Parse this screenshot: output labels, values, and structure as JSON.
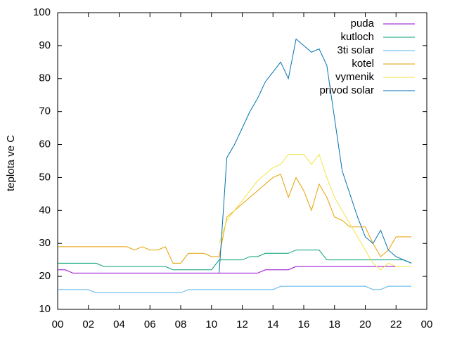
{
  "chart_data": {
    "type": "line",
    "ylabel": "teplota ve C",
    "x": [
      0,
      0.5,
      1,
      1.5,
      2,
      2.5,
      3,
      3.5,
      4,
      4.5,
      5,
      5.5,
      6,
      6.5,
      7,
      7.5,
      8,
      8.5,
      9,
      9.5,
      10,
      10.5,
      11,
      11.5,
      12,
      12.5,
      13,
      13.5,
      14,
      14.5,
      15,
      15.5,
      16,
      16.5,
      17,
      17.5,
      18,
      18.5,
      19,
      19.5,
      20,
      20.5,
      21,
      21.5,
      22,
      22.5,
      23
    ],
    "series": [
      {
        "name": "puda",
        "color": "#9400d3",
        "values": [
          22,
          22,
          21,
          21,
          21,
          21,
          21,
          21,
          21,
          21,
          21,
          21,
          21,
          21,
          21,
          21,
          21,
          21,
          21,
          21,
          21,
          21,
          21,
          21,
          21,
          21,
          21,
          22,
          22,
          22,
          22,
          23,
          23,
          23,
          23,
          23,
          23,
          23,
          23,
          23,
          23,
          23,
          23,
          23,
          23,
          23,
          23
        ]
      },
      {
        "name": "kutloch",
        "color": "#009e73",
        "values": [
          24,
          24,
          24,
          24,
          24,
          24,
          23,
          23,
          23,
          23,
          23,
          23,
          23,
          23,
          23,
          22,
          22,
          22,
          22,
          22,
          22,
          25,
          25,
          25,
          25,
          26,
          26,
          27,
          27,
          27,
          27,
          28,
          28,
          28,
          28,
          25,
          25,
          25,
          25,
          25,
          25,
          25,
          25,
          25,
          25,
          25,
          24
        ]
      },
      {
        "name": "3ti solar",
        "color": "#56b4e9",
        "values": [
          16,
          16,
          16,
          16,
          16,
          15,
          15,
          15,
          15,
          15,
          15,
          15,
          15,
          15,
          15,
          15,
          15,
          16,
          16,
          16,
          16,
          16,
          16,
          16,
          16,
          16,
          16,
          16,
          16,
          17,
          17,
          17,
          17,
          17,
          17,
          17,
          17,
          17,
          17,
          17,
          17,
          16,
          16,
          17,
          17,
          17,
          17
        ]
      },
      {
        "name": "kotel",
        "color": "#e69f00",
        "values": [
          29,
          29,
          29,
          29,
          29,
          29,
          29,
          29,
          29,
          29,
          28,
          29,
          28,
          28,
          29,
          24,
          24,
          27,
          27,
          27,
          26,
          26,
          38,
          40,
          42,
          44,
          46,
          48,
          50,
          51,
          44,
          50,
          46,
          40,
          48,
          44,
          38,
          37,
          35,
          35,
          35,
          30,
          26,
          28,
          32,
          32,
          32
        ]
      },
      {
        "name": "vymenik",
        "color": "#f0e442",
        "values": [
          null,
          null,
          null,
          null,
          null,
          null,
          null,
          null,
          null,
          null,
          null,
          null,
          null,
          null,
          null,
          null,
          null,
          null,
          null,
          null,
          null,
          30,
          37,
          40,
          43,
          46,
          49,
          51,
          53,
          54,
          57,
          57,
          57,
          54,
          57,
          50,
          44,
          40,
          36,
          32,
          28,
          24,
          22,
          24,
          23,
          23,
          23
        ]
      },
      {
        "name": "privod solar",
        "color": "#0072b2",
        "values": [
          null,
          null,
          null,
          null,
          null,
          null,
          null,
          null,
          null,
          null,
          null,
          null,
          null,
          null,
          null,
          null,
          null,
          null,
          null,
          null,
          null,
          21,
          56,
          60,
          65,
          70,
          74,
          79,
          82,
          85,
          80,
          92,
          90,
          88,
          89,
          84,
          68,
          52,
          45,
          38,
          32,
          30,
          34,
          28,
          26,
          25,
          24
        ]
      }
    ],
    "xlim": [
      0,
      24
    ],
    "xticks": [
      {
        "value": 0,
        "label": "00"
      },
      {
        "value": 2,
        "label": "02"
      },
      {
        "value": 4,
        "label": "04"
      },
      {
        "value": 6,
        "label": "06"
      },
      {
        "value": 8,
        "label": "08"
      },
      10,
      12,
      14,
      16,
      18,
      20,
      22,
      {
        "value": 24,
        "label": "00"
      }
    ],
    "ylim": [
      10,
      100
    ],
    "yticks": [
      10,
      20,
      30,
      40,
      50,
      60,
      70,
      80,
      90,
      100
    ],
    "legend": "top-right"
  }
}
